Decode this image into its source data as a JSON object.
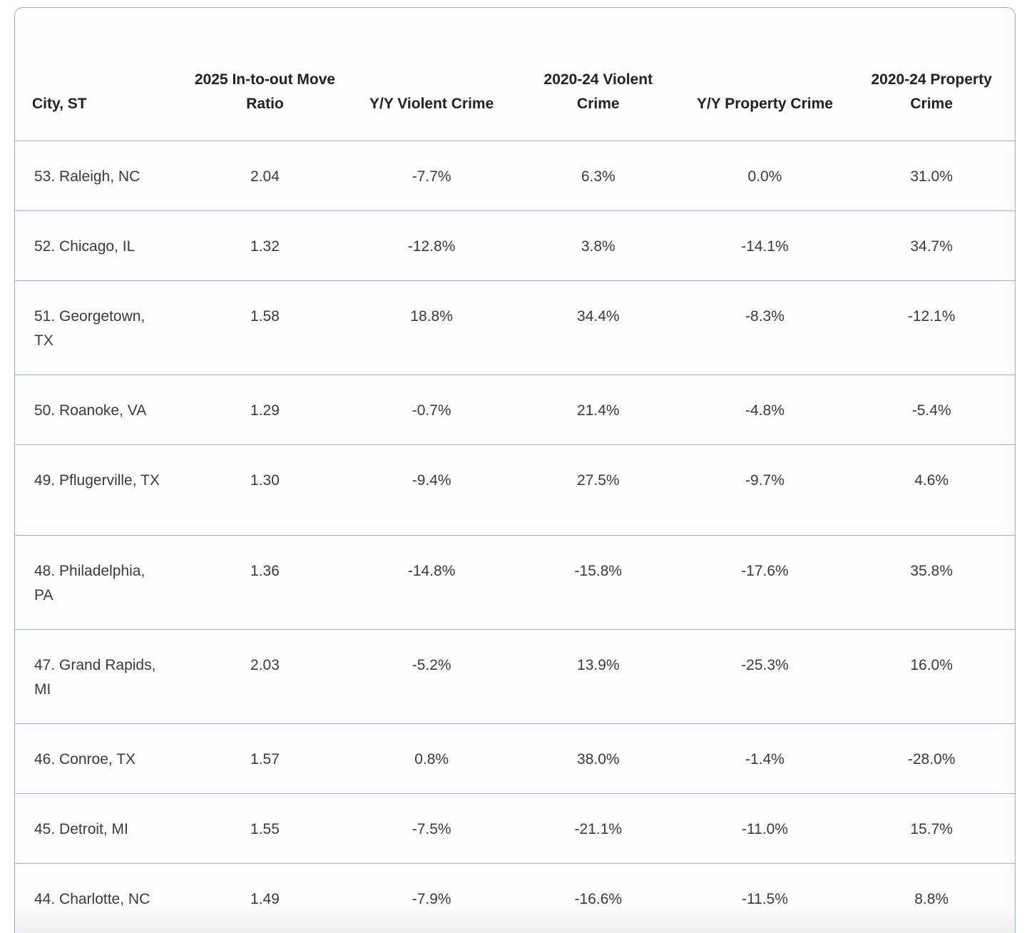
{
  "table": {
    "headers": [
      "City, ST",
      "2025 In-to-out Move Ratio",
      "Y/Y Violent Crime",
      "2020-24 Violent Crime",
      "Y/Y Property Crime",
      "2020-24 Property Crime"
    ],
    "rows": [
      [
        "53. Raleigh, NC",
        "2.04",
        "-7.7%",
        "6.3%",
        "0.0%",
        "31.0%"
      ],
      [
        "52. Chicago, IL",
        "1.32",
        "-12.8%",
        "3.8%",
        "-14.1%",
        "34.7%"
      ],
      [
        "51. Georgetown, TX",
        "1.58",
        "18.8%",
        "34.4%",
        "-8.3%",
        "-12.1%"
      ],
      [
        "50. Roanoke, VA",
        "1.29",
        "-0.7%",
        "21.4%",
        "-4.8%",
        "-5.4%"
      ],
      [
        "49. Pflugerville, TX",
        "1.30",
        "-9.4%",
        "27.5%",
        "-9.7%",
        "4.6%"
      ],
      [
        "48. Philadelphia, PA",
        "1.36",
        "-14.8%",
        "-15.8%",
        "-17.6%",
        "35.8%"
      ],
      [
        "47. Grand Rapids, MI",
        "2.03",
        "-5.2%",
        "13.9%",
        "-25.3%",
        "16.0%"
      ],
      [
        "46. Conroe, TX",
        "1.57",
        "0.8%",
        "38.0%",
        "-1.4%",
        "-28.0%"
      ],
      [
        "45. Detroit, MI",
        "1.55",
        "-7.5%",
        "-21.1%",
        "-11.0%",
        "15.7%"
      ],
      [
        "44. Charlotte, NC",
        "1.49",
        "-7.9%",
        "-16.6%",
        "-11.5%",
        "8.8%"
      ]
    ]
  },
  "colors": {
    "border": "#8fb0e0",
    "text": "#3a3a3a"
  }
}
